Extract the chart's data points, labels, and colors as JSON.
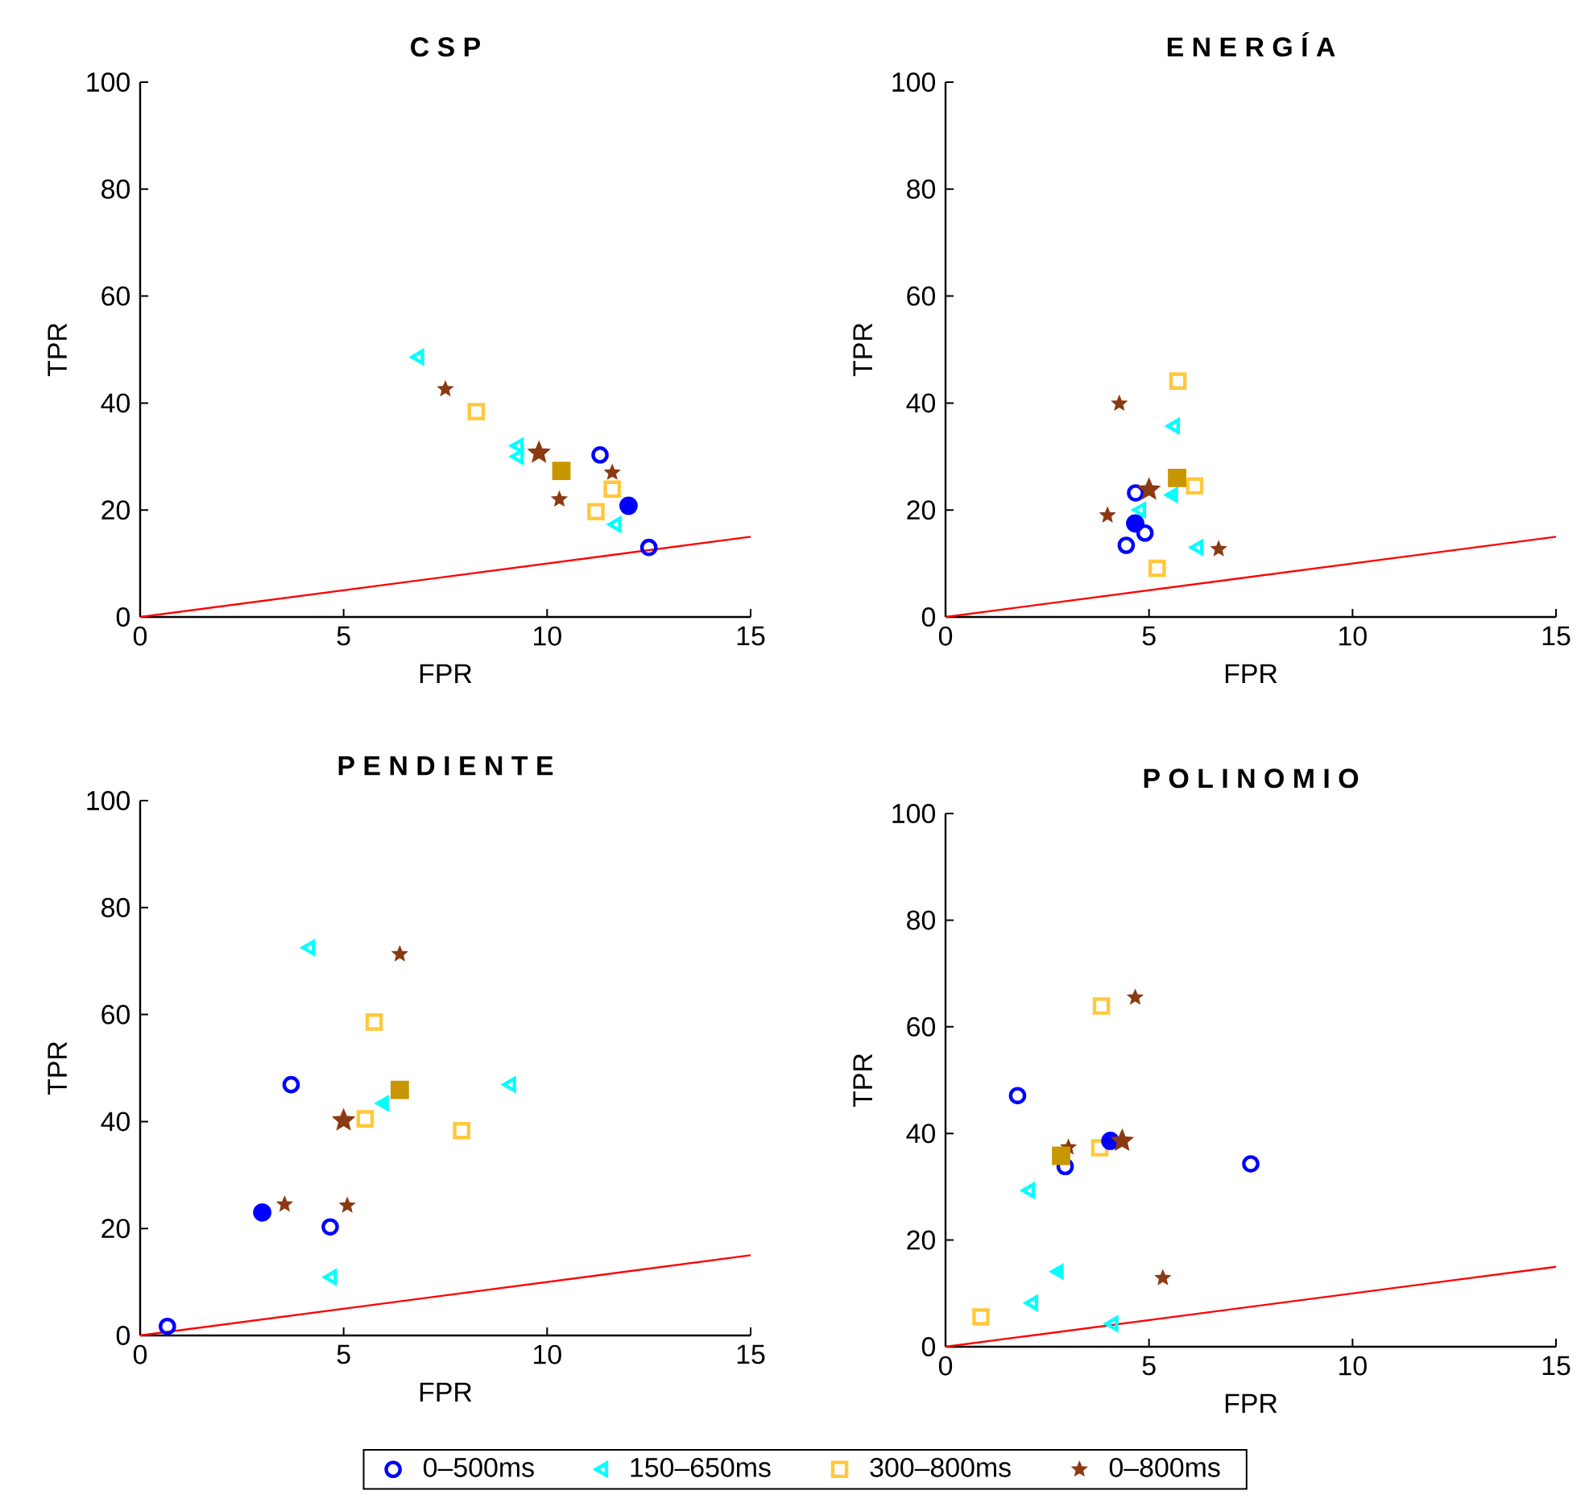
{
  "chart_data": [
    {
      "type": "scatter",
      "title": "C S P",
      "xlabel": "FPR",
      "ylabel": "TPR",
      "xlim": [
        0,
        15
      ],
      "ylim": [
        0,
        100
      ],
      "xticks": [
        0,
        5,
        10,
        15
      ],
      "yticks": [
        0,
        20,
        40,
        60,
        80,
        100
      ],
      "series": [
        {
          "color": "#0000ff",
          "marker": "circle",
          "x": [
            11.3,
            12.5
          ],
          "values": [
            30.3,
            13.0
          ]
        },
        {
          "color": "#00ffff",
          "marker": "triangle",
          "x": [
            6.85,
            9.3,
            9.3,
            11.7
          ],
          "values": [
            48.6,
            32.0,
            30.0,
            17.3
          ]
        },
        {
          "color": "#ffc83c",
          "marker": "square",
          "x": [
            8.26,
            11.6,
            11.2
          ],
          "values": [
            38.4,
            23.9,
            19.7
          ]
        },
        {
          "color": "#8b3a12",
          "marker": "star",
          "x": [
            7.5,
            11.6,
            10.3
          ],
          "values": [
            42.6,
            27.0,
            22.0
          ]
        },
        {
          "color": "#0000ff",
          "marker": "circle",
          "x": [
            12.0
          ],
          "values": [
            20.8
          ]
        },
        {
          "color": "#c89600",
          "marker": "square",
          "x": [
            10.35
          ],
          "values": [
            27.3
          ]
        },
        {
          "color": "#8b3a12",
          "marker": "star",
          "x": [
            9.8
          ],
          "values": [
            30.7
          ]
        },
        {
          "type": "line",
          "color": "#ff0000",
          "marker": "none",
          "x": [
            0,
            15
          ],
          "values": [
            0,
            15
          ]
        }
      ]
    },
    {
      "type": "scatter",
      "title": "E N E R G Í A",
      "xlabel": "FPR",
      "ylabel": "TPR",
      "xlim": [
        0,
        15
      ],
      "ylim": [
        0,
        100
      ],
      "xticks": [
        0,
        5,
        10,
        15
      ],
      "yticks": [
        0,
        20,
        40,
        60,
        80,
        100
      ],
      "series": [
        {
          "color": "#0000ff",
          "marker": "circle",
          "x": [
            4.67,
            4.9,
            4.44
          ],
          "values": [
            23.2,
            15.7,
            13.4
          ]
        },
        {
          "color": "#00ffff",
          "marker": "triangle",
          "x": [
            5.63,
            4.8,
            6.21
          ],
          "values": [
            35.7,
            20.0,
            13.0
          ]
        },
        {
          "color": "#ffc83c",
          "marker": "square",
          "x": [
            5.71,
            6.12,
            5.2
          ],
          "values": [
            44.1,
            24.5,
            9.1
          ]
        },
        {
          "color": "#8b3a12",
          "marker": "star",
          "x": [
            4.27,
            3.98,
            6.71
          ],
          "values": [
            39.9,
            19.0,
            12.7
          ]
        },
        {
          "color": "#0000ff",
          "marker": "circle",
          "x": [
            4.66
          ],
          "values": [
            17.5
          ]
        },
        {
          "color": "#00ffff",
          "marker": "triangle",
          "x": [
            5.59
          ],
          "values": [
            22.8
          ]
        },
        {
          "color": "#c89600",
          "marker": "square",
          "x": [
            5.69
          ],
          "values": [
            26.0
          ]
        },
        {
          "color": "#8b3a12",
          "marker": "star",
          "x": [
            5.0
          ],
          "values": [
            23.8
          ]
        },
        {
          "type": "line",
          "color": "#ff0000",
          "marker": "none",
          "x": [
            0,
            15
          ],
          "values": [
            0,
            15
          ]
        }
      ]
    },
    {
      "type": "scatter",
      "title": "P E N D I E N T E",
      "xlabel": "FPR",
      "ylabel": "TPR",
      "xlim": [
        0,
        15
      ],
      "ylim": [
        0,
        100
      ],
      "xticks": [
        0,
        5,
        10,
        15
      ],
      "yticks": [
        0,
        20,
        40,
        60,
        80,
        100
      ],
      "series": [
        {
          "color": "#0000ff",
          "marker": "circle",
          "x": [
            3.71,
            4.67,
            0.67
          ],
          "values": [
            46.9,
            20.3,
            1.7
          ]
        },
        {
          "color": "#00ffff",
          "marker": "triangle",
          "x": [
            4.17,
            9.11,
            4.71
          ],
          "values": [
            72.5,
            46.9,
            10.9
          ]
        },
        {
          "color": "#ffc83c",
          "marker": "square",
          "x": [
            5.75,
            5.53,
            7.9
          ],
          "values": [
            58.6,
            40.5,
            38.3
          ]
        },
        {
          "color": "#8b3a12",
          "marker": "star",
          "x": [
            6.38,
            3.55,
            5.09
          ],
          "values": [
            71.3,
            24.5,
            24.3
          ]
        },
        {
          "color": "#0000ff",
          "marker": "circle",
          "x": [
            3.0
          ],
          "values": [
            23.0
          ]
        },
        {
          "color": "#00ffff",
          "marker": "triangle",
          "x": [
            5.99
          ],
          "values": [
            43.4
          ]
        },
        {
          "color": "#c89600",
          "marker": "square",
          "x": [
            6.38
          ],
          "values": [
            45.9
          ]
        },
        {
          "color": "#8b3a12",
          "marker": "star",
          "x": [
            5.0
          ],
          "values": [
            40.2
          ]
        },
        {
          "type": "line",
          "color": "#ff0000",
          "marker": "none",
          "x": [
            0,
            15
          ],
          "values": [
            0,
            15
          ]
        }
      ]
    },
    {
      "type": "scatter",
      "title": "P O L I N O M I O",
      "xlabel": "FPR",
      "ylabel": "TPR",
      "xlim": [
        0,
        15
      ],
      "ylim": [
        0,
        100
      ],
      "xticks": [
        0,
        5,
        10,
        15
      ],
      "yticks": [
        0,
        20,
        40,
        60,
        80,
        100
      ],
      "legend": "bottom",
      "series": [
        {
          "name": "0–500ms",
          "color": "#0000ff",
          "marker": "circle",
          "x": [
            1.77,
            2.94,
            7.5
          ],
          "values": [
            47.1,
            33.8,
            34.3
          ]
        },
        {
          "name": "150–650ms",
          "color": "#00ffff",
          "marker": "triangle",
          "x": [
            2.07,
            2.15,
            4.12
          ],
          "values": [
            29.3,
            8.2,
            4.3
          ]
        },
        {
          "name": "300–800ms",
          "color": "#ffc83c",
          "marker": "square",
          "x": [
            3.83,
            3.79,
            0.87
          ],
          "values": [
            63.9,
            37.3,
            5.6
          ]
        },
        {
          "name": "0–800ms",
          "color": "#8b3a12",
          "marker": "star",
          "x": [
            4.66,
            3.02,
            5.34
          ],
          "values": [
            65.5,
            37.4,
            12.9
          ]
        },
        {
          "color": "#0000ff",
          "marker": "circle",
          "x": [
            4.05
          ],
          "values": [
            38.6
          ]
        },
        {
          "color": "#00ffff",
          "marker": "triangle",
          "x": [
            2.78
          ],
          "values": [
            14.1
          ]
        },
        {
          "color": "#c89600",
          "marker": "square",
          "x": [
            2.84
          ],
          "values": [
            35.8
          ]
        },
        {
          "color": "#8b3a12",
          "marker": "star",
          "x": [
            4.34
          ],
          "values": [
            38.6
          ]
        },
        {
          "type": "line",
          "color": "#ff0000",
          "marker": "none",
          "x": [
            0,
            15
          ],
          "values": [
            0,
            15
          ]
        }
      ]
    }
  ]
}
